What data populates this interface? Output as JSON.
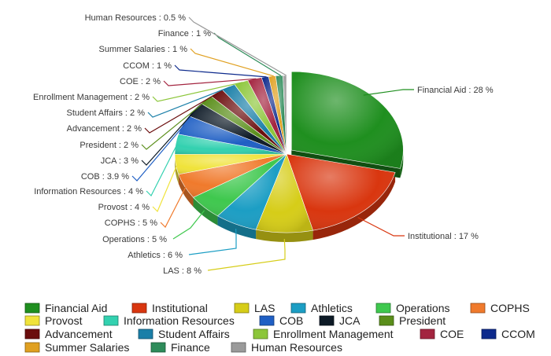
{
  "chart_data": {
    "type": "pie",
    "title": "",
    "style": "3d-exploded",
    "legend_position": "bottom",
    "slices": [
      {
        "name": "Financial Aid",
        "value": 28,
        "label": "Financial Aid : 28 %",
        "color": "#1f8f1f"
      },
      {
        "name": "Institutional",
        "value": 17,
        "label": "Institutional : 17 %",
        "color": "#d9360f"
      },
      {
        "name": "LAS",
        "value": 8,
        "label": "LAS : 8 %",
        "color": "#d6cd18"
      },
      {
        "name": "Athletics",
        "value": 6,
        "label": "Athletics : 6 %",
        "color": "#1c9ec4"
      },
      {
        "name": "Operations",
        "value": 5,
        "label": "Operations : 5 %",
        "color": "#3fc84e"
      },
      {
        "name": "COPHS",
        "value": 5,
        "label": "COPHS : 5 %",
        "color": "#f07a2c"
      },
      {
        "name": "Provost",
        "value": 4,
        "label": "Provost : 4 %",
        "color": "#f0e33a"
      },
      {
        "name": "Information Resources",
        "value": 4,
        "label": "Information Resources : 4 %",
        "color": "#33d1b0"
      },
      {
        "name": "COB",
        "value": 3.9,
        "label": "COB : 3.9 %",
        "color": "#1f5fc4"
      },
      {
        "name": "JCA",
        "value": 3,
        "label": "JCA : 3 %",
        "color": "#0d1a26"
      },
      {
        "name": "President",
        "value": 2,
        "label": "President : 2 %",
        "color": "#5a8e1a"
      },
      {
        "name": "Advancement",
        "value": 2,
        "label": "Advancement : 2 %",
        "color": "#6b0d0d"
      },
      {
        "name": "Student Affairs",
        "value": 2,
        "label": "Student Affairs : 2 %",
        "color": "#1a7fa8"
      },
      {
        "name": "Enrollment Management",
        "value": 2,
        "label": "Enrollment Management : 2 %",
        "color": "#8cc63a"
      },
      {
        "name": "COE",
        "value": 2,
        "label": "COE : 2 %",
        "color": "#a3243f"
      },
      {
        "name": "CCOM",
        "value": 1,
        "label": "CCOM : 1 %",
        "color": "#0d2a8c"
      },
      {
        "name": "Summer Salaries",
        "value": 1,
        "label": "Summer Salaries : 1 %",
        "color": "#e0a020"
      },
      {
        "name": "Finance",
        "value": 1,
        "label": "Finance : 1 %",
        "color": "#2e8c5a"
      },
      {
        "name": "Human Resources",
        "value": 0.5,
        "label": "Human Resources : 0.5 %",
        "color": "#9a9a9a"
      }
    ]
  }
}
